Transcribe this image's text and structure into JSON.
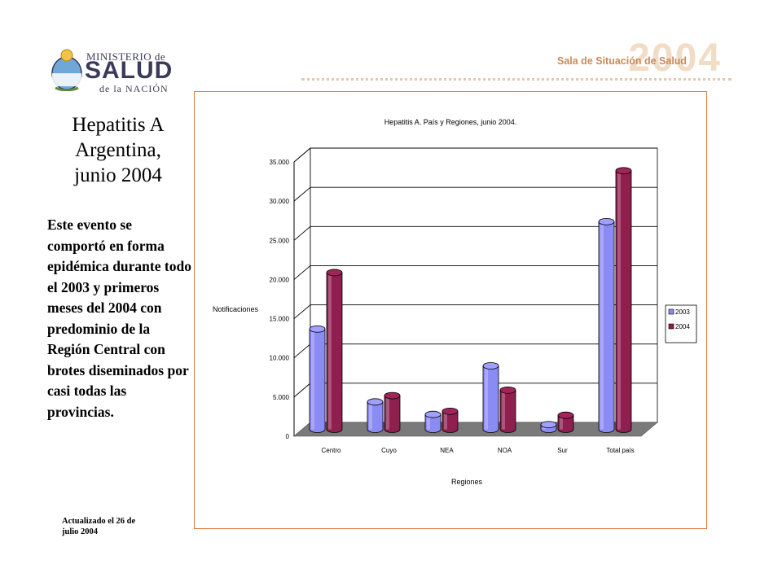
{
  "header": {
    "logo": {
      "line1": "MINISTERIO de",
      "line2": "SALUD",
      "line3": "de la NACIÓN"
    },
    "brand": {
      "tagline": "Sala de Situación de Salud",
      "year": "2004"
    }
  },
  "sidebar": {
    "title_lines": [
      "Hepatitis A",
      "Argentina,",
      "junio 2004"
    ],
    "description": "Este evento se comportó en forma epidémica durante todo el 2003 y primeros meses del 2004 con predominio de la Región Central con brotes diseminados por casi todas las provincias.",
    "updated_lines": [
      "Actualizado el 26 de",
      "julio 2004"
    ]
  },
  "colors": {
    "frame": "#e07a3e",
    "series_2003": "#8b8bf4",
    "series_2004": "#8e1f4f",
    "floor": "#7a7a7a"
  },
  "chart_data": {
    "type": "bar",
    "title": "Hepatitis A. País y Regiones, junio 2004.",
    "xlabel": "Regiones",
    "ylabel": "Notificaciones",
    "categories": [
      "Centro",
      "Cuyo",
      "NEA",
      "NOA",
      "Sur",
      "Total país"
    ],
    "series": [
      {
        "name": "2003",
        "values": [
          12800,
          3500,
          1900,
          8100,
          600,
          26500
        ]
      },
      {
        "name": "2004",
        "values": [
          20000,
          4300,
          2300,
          5000,
          1800,
          33000
        ]
      }
    ],
    "ylim": [
      0,
      35000
    ],
    "yticks": [
      "0",
      "5.000",
      "10.000",
      "15.000",
      "20.000",
      "25.000",
      "30.000",
      "35.000"
    ],
    "ytick_values": [
      0,
      5000,
      10000,
      15000,
      20000,
      25000,
      30000,
      35000
    ],
    "grid": true,
    "legend": "right",
    "three_d": true
  }
}
